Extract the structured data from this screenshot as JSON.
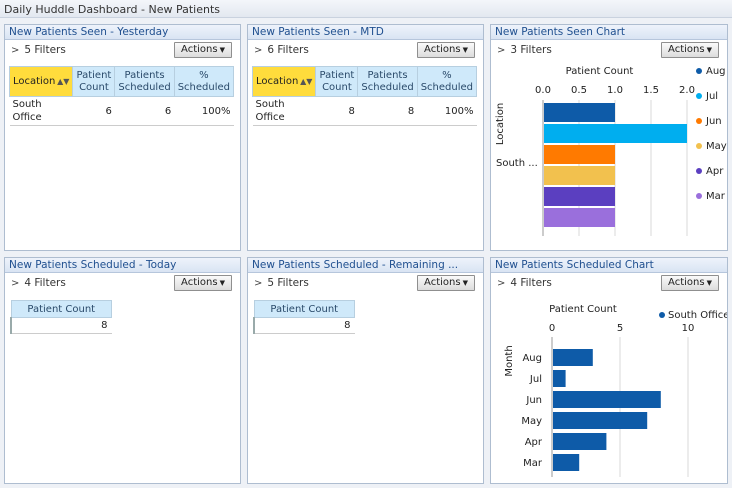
{
  "dashboard_title": "Daily Huddle Dashboard - New Patients",
  "actions_label": "Actions",
  "panels": {
    "seen_yesterday": {
      "title": "New Patients Seen - Yesterday",
      "filters": "5 Filters",
      "columns": [
        "Location",
        "Patient Count",
        "Patients Scheduled",
        "% Scheduled"
      ],
      "rows": [
        [
          "South Office",
          "6",
          "6",
          "100%"
        ]
      ]
    },
    "seen_mtd": {
      "title": "New Patients Seen - MTD",
      "filters": "6 Filters",
      "columns": [
        "Location",
        "Patient Count",
        "Patients Scheduled",
        "% Scheduled"
      ],
      "rows": [
        [
          "South Office",
          "8",
          "8",
          "100%"
        ]
      ]
    },
    "seen_chart": {
      "title": "New Patients Seen Chart",
      "filters": "3 Filters"
    },
    "scheduled_today": {
      "title": "New Patients Scheduled - Today",
      "filters": "4 Filters",
      "column": "Patient Count",
      "value": "8"
    },
    "scheduled_remaining": {
      "title": "New Patients Scheduled - Remaining ...",
      "filters": "5 Filters",
      "column": "Patient Count",
      "value": "8"
    },
    "scheduled_chart": {
      "title": "New Patients Scheduled Chart",
      "filters": "4 Filters"
    }
  },
  "chart_data": [
    {
      "type": "bar",
      "orientation": "horizontal",
      "xlabel": "Patient Count",
      "ylabel": "Location",
      "xlim": [
        0,
        2.0
      ],
      "x_ticks": [
        "0.0",
        "0.5",
        "1.0",
        "1.5",
        "2.0"
      ],
      "categories": [
        "South ..."
      ],
      "series": [
        {
          "name": "Aug",
          "values": [
            1
          ],
          "color": "#0e5ba8"
        },
        {
          "name": "Jul",
          "values": [
            2
          ],
          "color": "#00aeef"
        },
        {
          "name": "Jun",
          "values": [
            1
          ],
          "color": "#ff7a00"
        },
        {
          "name": "May",
          "values": [
            1
          ],
          "color": "#f2c14e"
        },
        {
          "name": "Apr",
          "values": [
            1
          ],
          "color": "#5b3fc0"
        },
        {
          "name": "Mar",
          "values": [
            1
          ],
          "color": "#9a6fdc"
        }
      ],
      "legend": "right",
      "grid": true
    },
    {
      "type": "bar",
      "orientation": "horizontal",
      "xlabel": "Patient Count",
      "ylabel": "Month",
      "xlim": [
        0,
        10
      ],
      "x_ticks": [
        "0",
        "5",
        "10"
      ],
      "categories": [
        "Aug",
        "Jul",
        "Jun",
        "May",
        "Apr",
        "Mar"
      ],
      "series": [
        {
          "name": "South Office",
          "values": [
            3,
            1,
            8,
            7,
            4,
            2
          ],
          "color": "#0e5ba8"
        }
      ],
      "legend": "top-right",
      "grid": true
    }
  ]
}
